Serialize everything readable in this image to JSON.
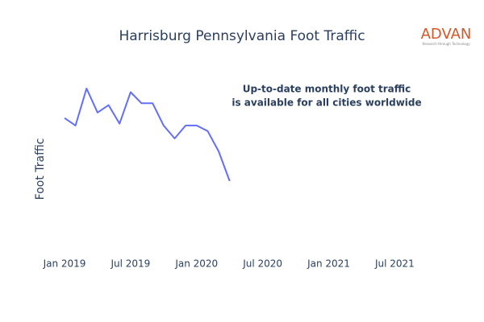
{
  "chart_data": {
    "type": "line",
    "title": "Harrisburg Pennsylvania Foot Traffic",
    "y_label": "Foot Traffic",
    "annotation": [
      "Up-to-date monthly foot traffic",
      "is available for all cities worldwide"
    ],
    "logo": {
      "name": "ADVAN",
      "tagline": "Research through Technology"
    },
    "x": [
      "2019-01",
      "2019-02",
      "2019-03",
      "2019-04",
      "2019-05",
      "2019-06",
      "2019-07",
      "2019-08",
      "2019-09",
      "2019-10",
      "2019-11",
      "2019-12",
      "2020-01",
      "2020-02",
      "2020-03",
      "2020-04"
    ],
    "series": [
      {
        "name": "Foot Traffic",
        "color": "#636efa",
        "values": [
          71,
          67,
          87,
          74,
          78,
          68,
          85,
          79,
          79,
          67,
          60,
          67,
          67,
          64,
          53,
          37
        ]
      }
    ],
    "xlim": [
      "2018-11",
      "2021-11"
    ],
    "xticks": [
      {
        "value": "2019-01",
        "label": "Jan 2019"
      },
      {
        "value": "2019-07",
        "label": "Jul 2019"
      },
      {
        "value": "2020-01",
        "label": "Jan 2020"
      },
      {
        "value": "2020-07",
        "label": "Jul 2020"
      },
      {
        "value": "2021-01",
        "label": "Jan 2021"
      },
      {
        "value": "2021-07",
        "label": "Jul 2021"
      }
    ],
    "ylim": [
      0,
      100
    ]
  }
}
